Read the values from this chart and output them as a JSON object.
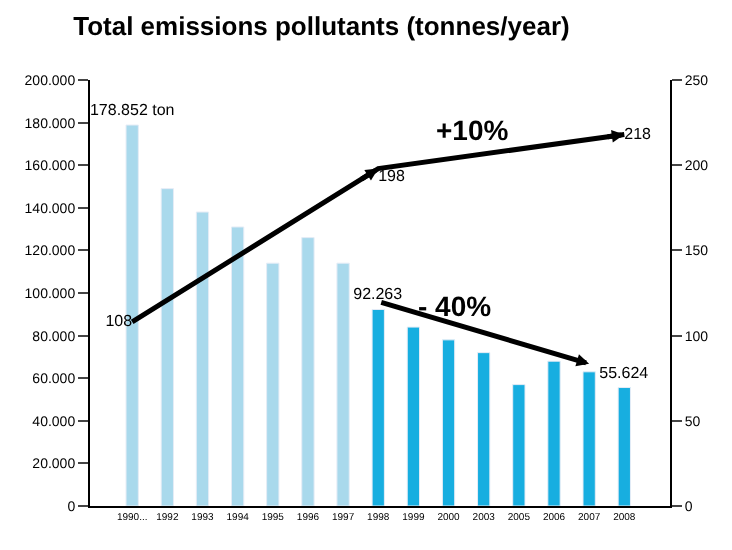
{
  "chart_data": {
    "type": "bar",
    "title": "Total emissions pollutants (tonnes/year)",
    "categories": [
      "1990...",
      "1992",
      "1993",
      "1994",
      "1995",
      "1996",
      "1997",
      "1998",
      "1999",
      "2000",
      "2003",
      "2005",
      "2006",
      "2007",
      "2008"
    ],
    "series": [
      {
        "colors": [
          "#a9d9ec",
          "#a9d9ec",
          "#a9d9ec",
          "#a9d9ec",
          "#a9d9ec",
          "#a9d9ec",
          "#a9d9ec",
          "#17aee0",
          "#17aee0",
          "#17aee0",
          "#17aee0",
          "#17aee0",
          "#17aee0",
          "#17aee0",
          "#17aee0"
        ],
        "values": [
          178852,
          149000,
          138000,
          131000,
          114000,
          126000,
          114000,
          92263,
          84000,
          78000,
          72000,
          57000,
          68000,
          63000,
          55624
        ],
        "value_labels": [
          "178.852 ton",
          null,
          null,
          null,
          null,
          null,
          null,
          "92.263",
          null,
          null,
          null,
          null,
          null,
          null,
          "55.624"
        ]
      },
      {
        "type": "line",
        "axis": "y2",
        "color": "#000000",
        "values": [
          108,
          null,
          null,
          null,
          null,
          null,
          null,
          198,
          null,
          null,
          null,
          null,
          null,
          null,
          218
        ],
        "value_labels": [
          "108",
          null,
          null,
          null,
          null,
          null,
          null,
          "198",
          null,
          null,
          null,
          null,
          null,
          null,
          "218"
        ]
      }
    ],
    "annotations": [
      "+10%",
      "- 40%"
    ],
    "ylim": [
      0,
      200000
    ],
    "yticks": [
      {
        "value": 0,
        "label": "0"
      },
      {
        "value": 20000,
        "label": "20.000"
      },
      {
        "value": 40000,
        "label": "40.000"
      },
      {
        "value": 60000,
        "label": "60.000"
      },
      {
        "value": 80000,
        "label": "80.000"
      },
      {
        "value": 100000,
        "label": "100.000"
      },
      {
        "value": 120000,
        "label": "120.000"
      },
      {
        "value": 140000,
        "label": "140.000"
      },
      {
        "value": 160000,
        "label": "160.000"
      },
      {
        "value": 180000,
        "label": "180.000"
      },
      {
        "value": 200000,
        "label": "200.000"
      }
    ],
    "y2lim": [
      0,
      250
    ],
    "y2ticks": [
      0,
      50,
      100,
      150,
      200,
      250
    ],
    "legend": false
  }
}
